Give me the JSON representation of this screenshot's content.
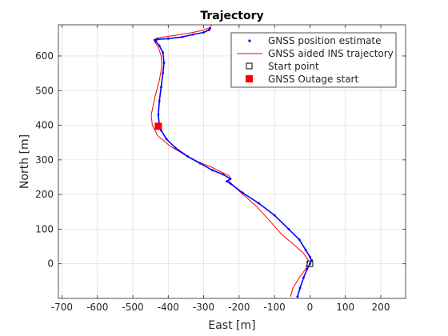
{
  "chart_data": {
    "type": "line",
    "title": "Trajectory",
    "xlabel": "East [m]",
    "ylabel": "North [m]",
    "xlim": [
      -710,
      270
    ],
    "ylim": [
      -100,
      690
    ],
    "grid": true,
    "legend_position": "top-right",
    "x_ticks": [
      -700,
      -600,
      -500,
      -400,
      -300,
      -200,
      -100,
      0,
      100,
      200
    ],
    "y_ticks": [
      0,
      100,
      200,
      300,
      400,
      500,
      600
    ],
    "x_tick_labels": [
      "-700",
      "-600",
      "-500",
      "-400",
      "-300",
      "-200",
      "-100",
      "0",
      "100",
      "200"
    ],
    "y_tick_labels": [
      "0",
      "100",
      "200",
      "300",
      "400",
      "500",
      "600"
    ],
    "series": [
      {
        "name": "GNSS position estimate",
        "style": "markers",
        "color": "#0000ff",
        "x": [
          -35,
          -28,
          -18,
          -8,
          0,
          5,
          0,
          -12,
          -30,
          -60,
          -100,
          -145,
          -190,
          -225,
          -235,
          -225,
          -245,
          -275,
          -310,
          -345,
          -380,
          -405,
          -420,
          -425,
          -428,
          -425,
          -420,
          -415,
          -412,
          -415,
          -425,
          -435,
          -438,
          -430,
          -400,
          -360,
          -330,
          -300,
          -285,
          -282
        ],
        "y": [
          -95,
          -70,
          -40,
          -15,
          0,
          10,
          20,
          40,
          70,
          100,
          140,
          175,
          205,
          232,
          238,
          245,
          258,
          270,
          290,
          310,
          335,
          360,
          385,
          400,
          430,
          470,
          510,
          550,
          580,
          610,
          630,
          642,
          646,
          648,
          650,
          655,
          662,
          668,
          675,
          680
        ]
      },
      {
        "name": "GNSS aided INS trajectory",
        "style": "line",
        "color": "#ff0000",
        "x": [
          -55,
          -48,
          -30,
          -12,
          -5,
          -18,
          -45,
          -80,
          -110,
          -150,
          -200,
          -230,
          -222,
          -230,
          -250,
          -275,
          -310,
          -350,
          -395,
          -430,
          -445,
          -448,
          -438,
          -425,
          -418,
          -420,
          -428,
          -438,
          -440,
          -432,
          -405,
          -365,
          -330,
          -300,
          -282,
          -278,
          -280
        ],
        "y": [
          -95,
          -70,
          -40,
          -15,
          10,
          30,
          55,
          85,
          120,
          165,
          210,
          240,
          245,
          255,
          265,
          278,
          292,
          312,
          340,
          370,
          400,
          430,
          480,
          530,
          570,
          600,
          625,
          640,
          647,
          652,
          656,
          662,
          668,
          675,
          682,
          688,
          690
        ]
      },
      {
        "name": "Start point",
        "style": "open-square",
        "color": "#000000",
        "x": [
          0
        ],
        "y": [
          0
        ]
      },
      {
        "name": "GNSS Outage start",
        "style": "filled-square",
        "color": "#ff0000",
        "x": [
          -428
        ],
        "y": [
          397
        ]
      }
    ]
  }
}
